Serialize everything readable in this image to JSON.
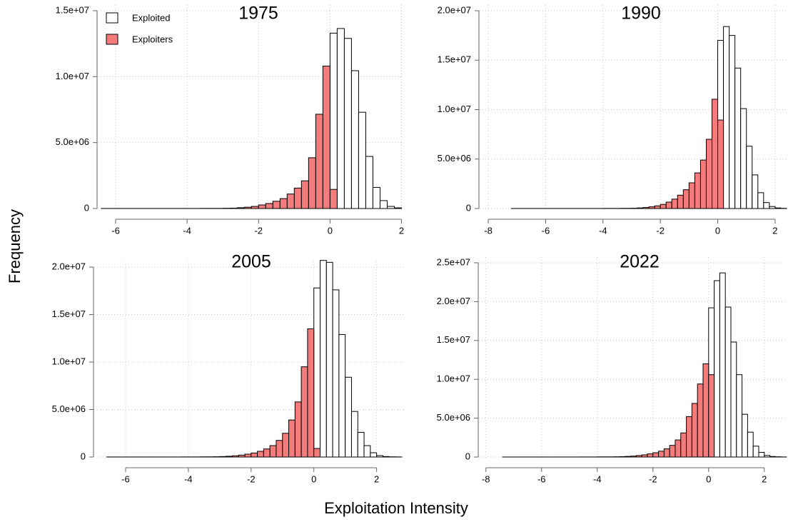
{
  "xlabel": "Exploitation Intensity",
  "ylabel": "Frequency",
  "chart_data": [
    {
      "type": "histogram",
      "title": "1975",
      "legend": "top-left",
      "grid": true,
      "bins": [
        -6.4,
        -6.2,
        -6.0,
        -5.8,
        -5.6,
        -5.4,
        -5.2,
        -5.0,
        -4.8,
        -4.6,
        -4.4,
        -4.2,
        -4.0,
        -3.8,
        -3.6,
        -3.4,
        -3.2,
        -3.0,
        -2.8,
        -2.6,
        -2.4,
        -2.2,
        -2.0,
        -1.8,
        -1.6,
        -1.4,
        -1.2,
        -1.0,
        -0.8,
        -0.6,
        -0.4,
        -0.2,
        0,
        0.2,
        0.4,
        0.6,
        0.8,
        1.0,
        1.2,
        1.4,
        1.6,
        1.8,
        2.0
      ],
      "series": [
        {
          "name": "Exploited",
          "color": "#ffffff",
          "values": [
            0,
            0,
            0,
            0,
            0,
            0,
            0,
            0,
            0,
            0,
            0,
            0,
            0,
            0,
            0,
            0,
            0,
            0,
            0,
            0,
            0,
            0,
            0,
            0,
            0,
            0,
            0,
            0,
            0,
            0,
            0,
            0,
            13300000,
            13650000,
            12900000,
            10450000,
            7300000,
            3950000,
            1600000,
            600000,
            160000,
            50000
          ]
        },
        {
          "name": "Exploiters",
          "color": "#f47b7b",
          "values": [
            5000,
            5000,
            5000,
            5000,
            5000,
            5000,
            5000,
            5000,
            5000,
            5000,
            5000,
            5000,
            5000,
            5000,
            10000,
            10000,
            10000,
            20000,
            30000,
            60000,
            100000,
            160000,
            270000,
            380000,
            550000,
            750000,
            1100000,
            1550000,
            2100000,
            3850000,
            7150000,
            10800000,
            1450000,
            0,
            0,
            0,
            0,
            0,
            0,
            0,
            0,
            0
          ]
        }
      ],
      "xlim": [
        -6.5,
        2.05
      ],
      "xticks": [
        -6,
        -4,
        -2,
        0,
        2
      ],
      "ylim": [
        0,
        15000000
      ],
      "yticks": [
        0,
        {
          "value": 5000000,
          "label": "5.0e+06"
        },
        {
          "value": 10000000,
          "label": "1.0e+07"
        },
        {
          "value": 15000000,
          "label": "1.5e+07"
        }
      ]
    },
    {
      "type": "histogram",
      "title": "1990",
      "grid": true,
      "bins": [
        -7.2,
        -7.0,
        -6.8,
        -6.6,
        -6.4,
        -6.2,
        -6.0,
        -5.8,
        -5.6,
        -5.4,
        -5.2,
        -5.0,
        -4.8,
        -4.6,
        -4.4,
        -4.2,
        -4.0,
        -3.8,
        -3.6,
        -3.4,
        -3.2,
        -3.0,
        -2.8,
        -2.6,
        -2.4,
        -2.2,
        -2.0,
        -1.8,
        -1.6,
        -1.4,
        -1.2,
        -1.0,
        -0.8,
        -0.6,
        -0.4,
        -0.2,
        0,
        0.2,
        0.4,
        0.6,
        0.8,
        1.0,
        1.2,
        1.4,
        1.6,
        1.8,
        2.0,
        2.2,
        2.4
      ],
      "series": [
        {
          "color": "#ffffff",
          "values": [
            0,
            0,
            0,
            0,
            0,
            0,
            0,
            0,
            0,
            0,
            0,
            0,
            0,
            0,
            0,
            0,
            0,
            0,
            0,
            0,
            0,
            0,
            0,
            0,
            0,
            0,
            0,
            0,
            0,
            0,
            0,
            0,
            0,
            0,
            0,
            0,
            17000000,
            18400000,
            17500000,
            14200000,
            10100000,
            6300000,
            3400000,
            1600000,
            600000,
            200000,
            60000,
            20000
          ]
        },
        {
          "color": "#f47b7b",
          "values": [
            5000,
            5000,
            5000,
            5000,
            5000,
            5000,
            5000,
            5000,
            5000,
            5000,
            5000,
            5000,
            5000,
            5000,
            5000,
            5000,
            10000,
            10000,
            10000,
            20000,
            20000,
            30000,
            60000,
            100000,
            170000,
            270000,
            420000,
            650000,
            950000,
            1350000,
            1900000,
            2600000,
            3600000,
            4900000,
            7000000,
            11050000,
            8950000,
            0,
            0,
            0,
            0,
            0,
            0,
            0,
            0,
            0,
            0,
            0
          ]
        }
      ],
      "xlim": [
        -8.3,
        2.45
      ],
      "xticks": [
        -8,
        -6,
        -4,
        -2,
        0,
        2
      ],
      "ylim": [
        0,
        20000000
      ],
      "yticks": [
        0,
        {
          "value": 5000000,
          "label": "5.0e+06"
        },
        {
          "value": 10000000,
          "label": "1.0e+07"
        },
        {
          "value": 15000000,
          "label": "1.5e+07"
        },
        {
          "value": 20000000,
          "label": "2.0e+07"
        }
      ]
    },
    {
      "type": "histogram",
      "title": "2005",
      "grid": true,
      "bins": [
        -6.6,
        -6.4,
        -6.2,
        -6.0,
        -5.8,
        -5.6,
        -5.4,
        -5.2,
        -5.0,
        -4.8,
        -4.6,
        -4.4,
        -4.2,
        -4.0,
        -3.8,
        -3.6,
        -3.4,
        -3.2,
        -3.0,
        -2.8,
        -2.6,
        -2.4,
        -2.2,
        -2.0,
        -1.8,
        -1.6,
        -1.4,
        -1.2,
        -1.0,
        -0.8,
        -0.6,
        -0.4,
        -0.2,
        0,
        0.2,
        0.4,
        0.6,
        0.8,
        1.0,
        1.2,
        1.4,
        1.6,
        1.8,
        2.0,
        2.2,
        2.4,
        2.6,
        2.8
      ],
      "series": [
        {
          "color": "#ffffff",
          "values": [
            0,
            0,
            0,
            0,
            0,
            0,
            0,
            0,
            0,
            0,
            0,
            0,
            0,
            0,
            0,
            0,
            0,
            0,
            0,
            0,
            0,
            0,
            0,
            0,
            0,
            0,
            0,
            0,
            0,
            0,
            0,
            0,
            0,
            17800000,
            20700000,
            20500000,
            17600000,
            12900000,
            8400000,
            4800000,
            2600000,
            1200000,
            450000,
            150000,
            50000,
            20000,
            10000
          ]
        },
        {
          "color": "#f47b7b",
          "values": [
            5000,
            5000,
            5000,
            5000,
            5000,
            5000,
            5000,
            5000,
            5000,
            5000,
            5000,
            5000,
            10000,
            10000,
            10000,
            20000,
            20000,
            30000,
            50000,
            80000,
            130000,
            200000,
            300000,
            420000,
            600000,
            850000,
            1200000,
            1750000,
            2500000,
            3900000,
            5800000,
            9500000,
            13500000,
            900000,
            0,
            0,
            0,
            0,
            0,
            0,
            0,
            0,
            0,
            0,
            0,
            0,
            0
          ]
        }
      ],
      "xlim": [
        -7.0,
        2.85
      ],
      "xticks": [
        -6,
        -4,
        -2,
        0,
        2
      ],
      "ylim": [
        0,
        20000000
      ],
      "yticks": [
        0,
        {
          "value": 5000000,
          "label": "5.0e+06"
        },
        {
          "value": 10000000,
          "label": "1.0e+07"
        },
        {
          "value": 15000000,
          "label": "1.5e+07"
        },
        {
          "value": 20000000,
          "label": "2.0e+07"
        }
      ]
    },
    {
      "type": "histogram",
      "title": "2022",
      "grid": true,
      "bins": [
        -7.4,
        -7.2,
        -7.0,
        -6.8,
        -6.6,
        -6.4,
        -6.2,
        -6.0,
        -5.8,
        -5.6,
        -5.4,
        -5.2,
        -5.0,
        -4.8,
        -4.6,
        -4.4,
        -4.2,
        -4.0,
        -3.8,
        -3.6,
        -3.4,
        -3.2,
        -3.0,
        -2.8,
        -2.6,
        -2.4,
        -2.2,
        -2.0,
        -1.8,
        -1.6,
        -1.4,
        -1.2,
        -1.0,
        -0.8,
        -0.6,
        -0.4,
        -0.2,
        0,
        0.2,
        0.4,
        0.6,
        0.8,
        1.0,
        1.2,
        1.4,
        1.6,
        1.8,
        2.0,
        2.2,
        2.4,
        2.6,
        2.8
      ],
      "series": [
        {
          "color": "#ffffff",
          "values": [
            0,
            0,
            0,
            0,
            0,
            0,
            0,
            0,
            0,
            0,
            0,
            0,
            0,
            0,
            0,
            0,
            0,
            0,
            0,
            0,
            0,
            0,
            0,
            0,
            0,
            0,
            0,
            0,
            0,
            0,
            0,
            0,
            0,
            0,
            0,
            0,
            0,
            19200000,
            22700000,
            23700000,
            19300000,
            14800000,
            10600000,
            5500000,
            3200000,
            1400000,
            600000,
            200000,
            70000,
            30000,
            10000
          ]
        },
        {
          "color": "#f47b7b",
          "values": [
            5000,
            5000,
            5000,
            5000,
            5000,
            5000,
            5000,
            5000,
            5000,
            5000,
            5000,
            5000,
            5000,
            5000,
            10000,
            10000,
            10000,
            20000,
            20000,
            20000,
            30000,
            50000,
            80000,
            120000,
            190000,
            280000,
            400000,
            550000,
            750000,
            1050000,
            1500000,
            2200000,
            3100000,
            5200000,
            6900000,
            9400000,
            12000000,
            10600000,
            0,
            0,
            0,
            0,
            0,
            0,
            0,
            0,
            0,
            0,
            0,
            0,
            0
          ]
        }
      ],
      "xlim": [
        -8.25,
        2.8
      ],
      "xticks": [
        -8,
        -6,
        -4,
        -2,
        0,
        2
      ],
      "ylim": [
        0,
        25000000
      ],
      "yticks": [
        0,
        {
          "value": 5000000,
          "label": "5.0e+06"
        },
        {
          "value": 10000000,
          "label": "1.0e+07"
        },
        {
          "value": 15000000,
          "label": "1.5e+07"
        },
        {
          "value": 20000000,
          "label": "2.0e+07"
        },
        {
          "value": 25000000,
          "label": "2.5e+07"
        }
      ]
    }
  ]
}
